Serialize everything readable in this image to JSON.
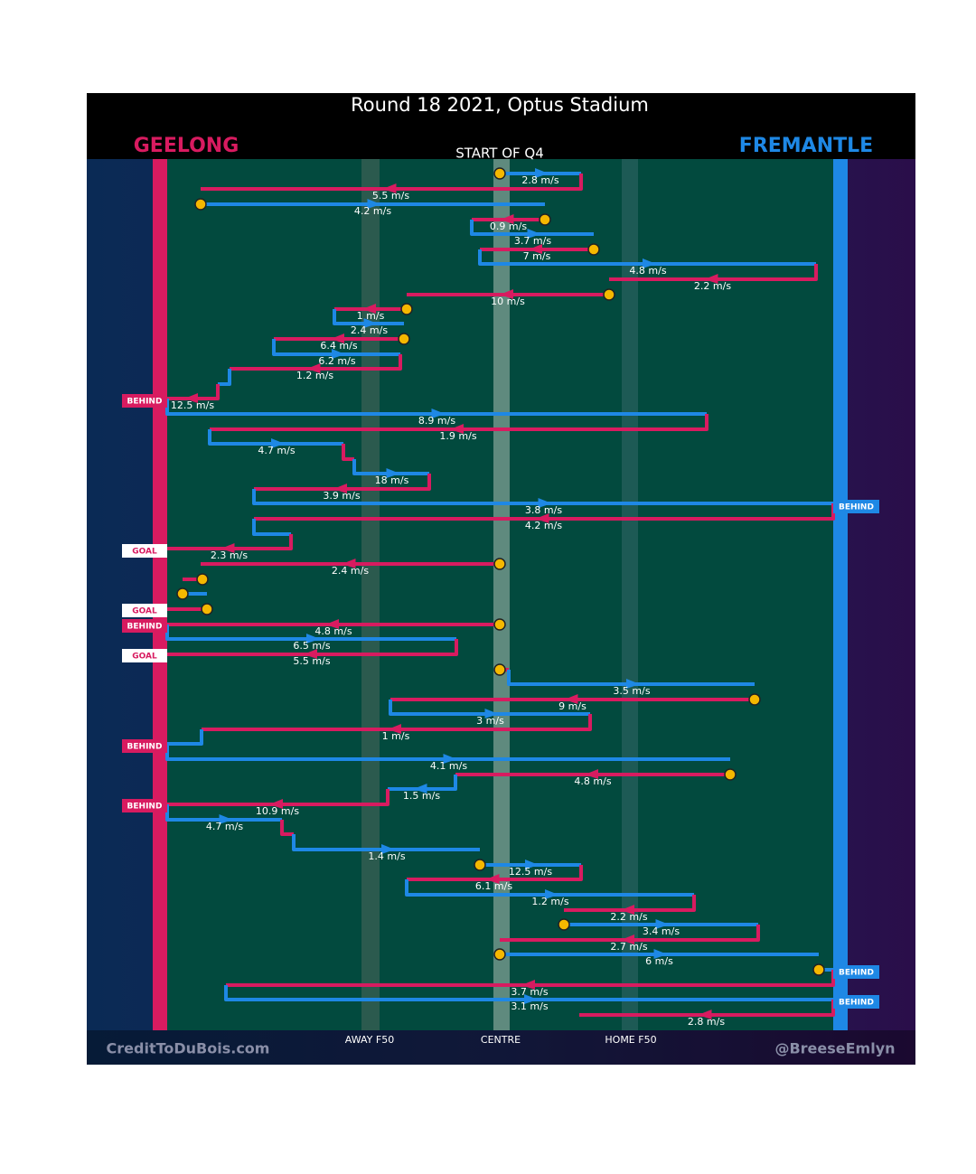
{
  "title": "Round 18 2021, Optus Stadium",
  "teams": [
    {
      "name": "GEELONG",
      "color": "#d81b60"
    },
    {
      "name": "FREMANTLE",
      "color": "#1e88e5"
    }
  ],
  "period": "START OF Q4",
  "field_labels": [
    "AWAY F50",
    "CENTRE",
    "HOME F50"
  ],
  "credits": [
    "CreditToDuBois.com",
    "@BreeseEmlyn"
  ],
  "segments": [
    {
      "label": "2.8 m/s"
    },
    {
      "label": "5.5 m/s"
    },
    {
      "label": "4.2 m/s"
    },
    {
      "label": "0.9 m/s"
    },
    {
      "label": "3.7 m/s"
    },
    {
      "label": "7 m/s"
    },
    {
      "label": "4.8 m/s"
    },
    {
      "label": "2.2 m/s"
    },
    {
      "label": "10 m/s"
    },
    {
      "label": "1 m/s"
    },
    {
      "label": "2.4 m/s"
    },
    {
      "label": "6.4 m/s"
    },
    {
      "label": "6.2 m/s"
    },
    {
      "label": "1.2 m/s"
    },
    {
      "label": "12.5 m/s"
    },
    {
      "label": "8.9 m/s"
    },
    {
      "label": "1.9 m/s"
    },
    {
      "label": "4.7 m/s"
    },
    {
      "label": "18 m/s"
    },
    {
      "label": "3.9 m/s"
    },
    {
      "label": "3.8 m/s"
    },
    {
      "label": "4.2 m/s"
    },
    {
      "label": "2.3 m/s"
    },
    {
      "label": "2.4 m/s"
    },
    {
      "label": "4.8 m/s"
    },
    {
      "label": "6.5 m/s"
    },
    {
      "label": "5.5 m/s"
    },
    {
      "label": "3.5 m/s"
    },
    {
      "label": "9 m/s"
    },
    {
      "label": "3 m/s"
    },
    {
      "label": "1 m/s"
    },
    {
      "label": "4.1 m/s"
    },
    {
      "label": "4.8 m/s"
    },
    {
      "label": "1.5 m/s"
    },
    {
      "label": "10.9 m/s"
    },
    {
      "label": "4.7 m/s"
    },
    {
      "label": "1.4 m/s"
    },
    {
      "label": "12.5 m/s"
    },
    {
      "label": "6.1 m/s"
    },
    {
      "label": "1.2 m/s"
    },
    {
      "label": "2.2 m/s"
    },
    {
      "label": "3.4 m/s"
    },
    {
      "label": "2.7 m/s"
    },
    {
      "label": "6 m/s"
    },
    {
      "label": "3.7 m/s"
    },
    {
      "label": "3.1 m/s"
    },
    {
      "label": "2.8 m/s"
    }
  ],
  "events": [
    {
      "label": "BEHIND"
    },
    {
      "label": "BEHIND"
    },
    {
      "label": "GOAL"
    },
    {
      "label": "GOAL"
    },
    {
      "label": "BEHIND"
    },
    {
      "label": "GOAL"
    },
    {
      "label": "BEHIND"
    },
    {
      "label": "BEHIND"
    },
    {
      "label": "BEHIND"
    },
    {
      "label": "BEHIND"
    }
  ]
}
